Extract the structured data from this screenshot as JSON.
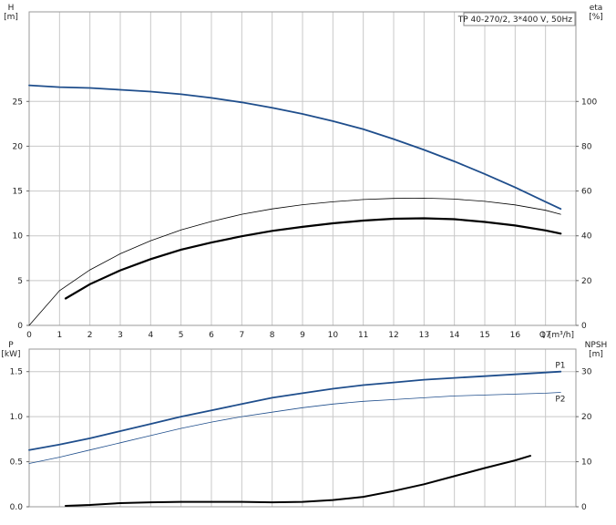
{
  "chart_data": [
    {
      "type": "line",
      "panel": "head-efficiency",
      "title": "TP 40-270/2, 3*400 V, 50Hz",
      "xlabel": "Q [m³/h]",
      "ylabel_left": [
        "H",
        "[m]"
      ],
      "ylabel_right": [
        "eta",
        "[%]"
      ],
      "xlim": [
        0,
        18
      ],
      "ylim_left": [
        0,
        35
      ],
      "ylim_right": [
        0,
        140
      ],
      "x_ticks": [
        "0",
        "1",
        "2",
        "3",
        "4",
        "5",
        "6",
        "7",
        "8",
        "9",
        "10",
        "11",
        "12",
        "13",
        "14",
        "15",
        "16",
        "17"
      ],
      "y_left_ticks": [
        "0",
        "5",
        "10",
        "15",
        "20",
        "25"
      ],
      "y_right_ticks": [
        "0",
        "20",
        "40",
        "60",
        "80",
        "100"
      ],
      "grid": true,
      "series": [
        {
          "axis": "left",
          "color": "#1f4e8c",
          "width": 1.8,
          "x": [
            0,
            1,
            2,
            3,
            4,
            5,
            6,
            7,
            8,
            9,
            10,
            11,
            12,
            13,
            14,
            15,
            16,
            17,
            17.5
          ],
          "y": [
            26.8,
            26.6,
            26.5,
            26.3,
            26.1,
            25.8,
            25.4,
            24.9,
            24.3,
            23.6,
            22.8,
            21.9,
            20.8,
            19.6,
            18.3,
            16.9,
            15.4,
            13.8,
            13.0
          ]
        },
        {
          "axis": "right",
          "color": "#000000",
          "width": 0.8,
          "x": [
            0,
            1,
            2,
            3,
            4,
            5,
            6,
            7,
            8,
            9,
            10,
            11,
            12,
            13,
            14,
            15,
            16,
            17,
            17.5
          ],
          "y": [
            0,
            15.5,
            24.8,
            32.0,
            37.8,
            42.6,
            46.4,
            49.6,
            52.0,
            53.9,
            55.2,
            56.2,
            56.7,
            56.8,
            56.4,
            55.4,
            53.8,
            51.4,
            49.6
          ]
        },
        {
          "axis": "right",
          "color": "#000000",
          "width": 2.2,
          "x": [
            1.2,
            2,
            3,
            4,
            5,
            6,
            7,
            8,
            9,
            10,
            11,
            12,
            13,
            14,
            15,
            16,
            17,
            17.5
          ],
          "y": [
            12.0,
            18.4,
            24.6,
            29.6,
            33.8,
            37.0,
            39.8,
            42.2,
            44.0,
            45.6,
            46.8,
            47.6,
            47.8,
            47.4,
            46.2,
            44.6,
            42.4,
            41.0
          ]
        }
      ]
    },
    {
      "type": "line",
      "panel": "power-npsh",
      "xlabel": "",
      "ylabel_left": [
        "P",
        "[kW]"
      ],
      "ylabel_right": [
        "NPSH",
        "[m]"
      ],
      "xlim": [
        0,
        18
      ],
      "ylim_left": [
        0,
        1.75
      ],
      "ylim_right": [
        0,
        35
      ],
      "y_left_ticks": [
        "0.0",
        "0.5",
        "1.0",
        "1.5"
      ],
      "y_right_ticks": [
        "0",
        "10",
        "20",
        "30"
      ],
      "grid": true,
      "series": [
        {
          "name": "P1",
          "axis": "left",
          "color": "#1f4e8c",
          "width": 1.8,
          "x": [
            0,
            1,
            2,
            3,
            4,
            5,
            6,
            7,
            8,
            9,
            10,
            11,
            12,
            13,
            14,
            15,
            16,
            17,
            17.5
          ],
          "y": [
            0.63,
            0.69,
            0.76,
            0.84,
            0.92,
            1.0,
            1.07,
            1.14,
            1.21,
            1.26,
            1.31,
            1.35,
            1.38,
            1.41,
            1.43,
            1.45,
            1.47,
            1.49,
            1.5
          ]
        },
        {
          "name": "P2",
          "axis": "left",
          "color": "#1f4e8c",
          "width": 0.8,
          "x": [
            0,
            1,
            2,
            3,
            4,
            5,
            6,
            7,
            8,
            9,
            10,
            11,
            12,
            13,
            14,
            15,
            16,
            17,
            17.5
          ],
          "y": [
            0.48,
            0.55,
            0.63,
            0.71,
            0.79,
            0.87,
            0.94,
            1.0,
            1.05,
            1.1,
            1.14,
            1.17,
            1.19,
            1.21,
            1.23,
            1.24,
            1.25,
            1.26,
            1.27
          ]
        },
        {
          "axis": "right",
          "color": "#000000",
          "width": 2.0,
          "x": [
            1.2,
            2,
            3,
            4,
            5,
            6,
            7,
            8,
            9,
            10,
            11,
            12,
            13,
            14,
            15,
            16,
            16.5
          ],
          "y": [
            0.2,
            0.4,
            0.8,
            1.0,
            1.1,
            1.1,
            1.1,
            1.0,
            1.1,
            1.5,
            2.2,
            3.5,
            5.0,
            6.8,
            8.6,
            10.3,
            11.3
          ]
        }
      ]
    }
  ]
}
